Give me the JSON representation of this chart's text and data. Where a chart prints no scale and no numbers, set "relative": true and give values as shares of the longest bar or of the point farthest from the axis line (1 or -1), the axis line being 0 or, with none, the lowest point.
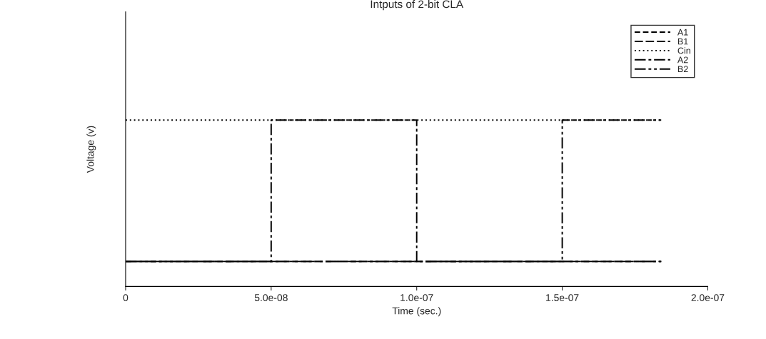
{
  "chart_data": {
    "type": "step",
    "title": "Intputs of 2-bit CLA",
    "xlabel": "Time (sec.)",
    "ylabel": "Voltage (v)",
    "relative": true,
    "x": [
      0,
      5e-08,
      1e-07,
      1.5e-07,
      1.84e-07
    ],
    "series": [
      {
        "name": "A1",
        "color": "#000000",
        "line_style": "dashed",
        "values": [
          0.15,
          0.15,
          0.15,
          0.15,
          0.15
        ]
      },
      {
        "name": "B1",
        "color": "#000000",
        "line_style": "dashed",
        "values": [
          0.15,
          0.15,
          0.15,
          0.15,
          0.15
        ]
      },
      {
        "name": "Cin",
        "color": "#000000",
        "line_style": "dotted",
        "values": [
          1,
          1,
          1,
          1,
          1
        ]
      },
      {
        "name": "A2",
        "color": "#000000",
        "line_style": "dashed",
        "values": [
          0.15,
          1,
          0.15,
          0.15,
          0.15
        ]
      },
      {
        "name": "B2",
        "color": "#000000",
        "line_style": "dashed",
        "values": [
          0.15,
          0.15,
          0.15,
          1,
          1
        ]
      }
    ],
    "xlim": [
      0,
      2e-07
    ],
    "xticks": [
      0,
      {
        "value": 5e-08,
        "label": "5.0e-08"
      },
      {
        "value": 1e-07,
        "label": "1.0e-07"
      },
      {
        "value": 1.5e-07,
        "label": "1.5e-07"
      },
      {
        "value": 2e-07,
        "label": "2.0e-07"
      }
    ],
    "tick_labels": "x",
    "grid": false,
    "legend": "top right"
  }
}
